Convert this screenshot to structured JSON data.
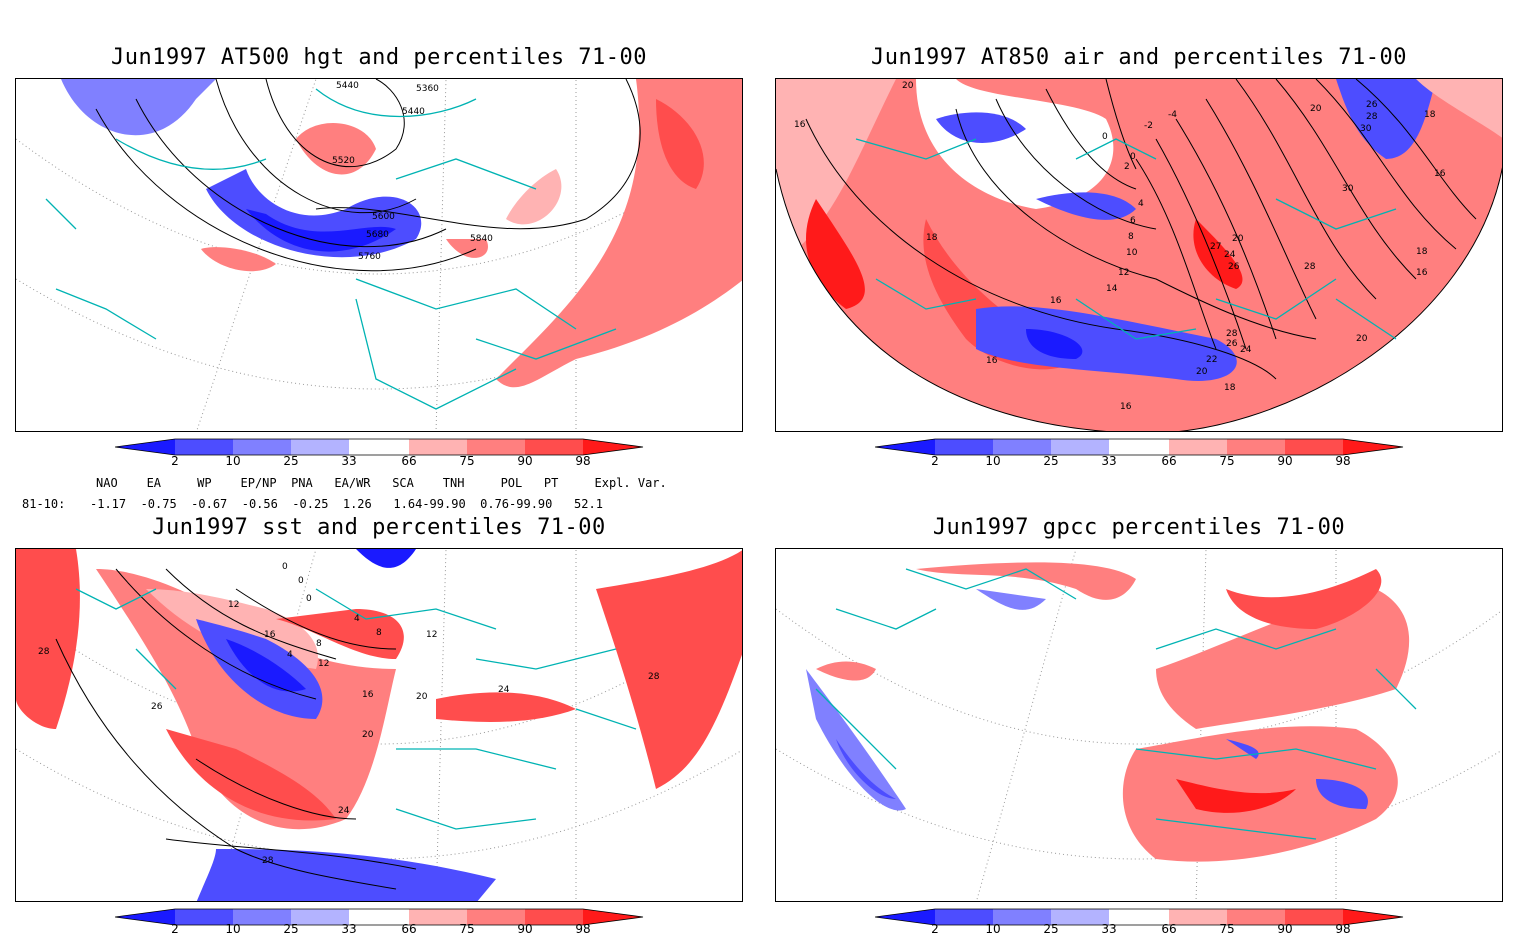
{
  "panels": [
    {
      "id": "p1",
      "title": "Jun1997 AT500 hgt and percentiles 71-00",
      "contour_labels": [
        "5440",
        "5360",
        "5440",
        "5520",
        "5600",
        "5680",
        "5760",
        "5840"
      ]
    },
    {
      "id": "p2",
      "title": "Jun1997 AT850 air and percentiles 71-00",
      "contour_labels": [
        "20",
        "16",
        "0",
        "-2",
        "-4",
        "2",
        "0",
        "4",
        "6",
        "8",
        "10",
        "12",
        "14",
        "16",
        "18",
        "20",
        "27",
        "24",
        "26",
        "28",
        "26",
        "24",
        "22",
        "20",
        "18",
        "16",
        "16",
        "20",
        "26",
        "28",
        "30",
        "30",
        "18",
        "18",
        "16",
        "20",
        "28",
        "16"
      ]
    },
    {
      "id": "p3",
      "title": "Jun1997 sst and percentiles 71-00",
      "contour_labels": [
        "28",
        "26",
        "12",
        "16",
        "4",
        "8",
        "12",
        "16",
        "20",
        "24",
        "28",
        "0",
        "0",
        "0",
        "4",
        "8",
        "12",
        "20",
        "24",
        "28"
      ]
    },
    {
      "id": "p4",
      "title": "Jun1997 gpcc percentiles 71-00",
      "contour_labels": []
    }
  ],
  "colorbar": {
    "ticks": [
      "2",
      "10",
      "25",
      "33",
      "66",
      "75",
      "90",
      "98"
    ],
    "colors": {
      "b1": "#1a1aff",
      "b2": "#4d4dff",
      "b3": "#8080ff",
      "b4": "#b3b3ff",
      "r1": "#ffb3b3",
      "r2": "#ff7f7f",
      "r3": "#ff4d4d",
      "r4": "#ff1a1a"
    }
  },
  "indices": {
    "header": "NAO    EA     WP    EP/NP  PNA   EA/WR   SCA    TNH     POL   PT     Expl. Var.",
    "row_label": "81-10:",
    "values": "-1.17  -0.75  -0.67  -0.56  -0.25  1.26   1.64-99.90  0.76-99.90   52.1"
  },
  "colors": {
    "coast": "#00b3b3",
    "contour": "#000000",
    "frame": "#000000"
  }
}
